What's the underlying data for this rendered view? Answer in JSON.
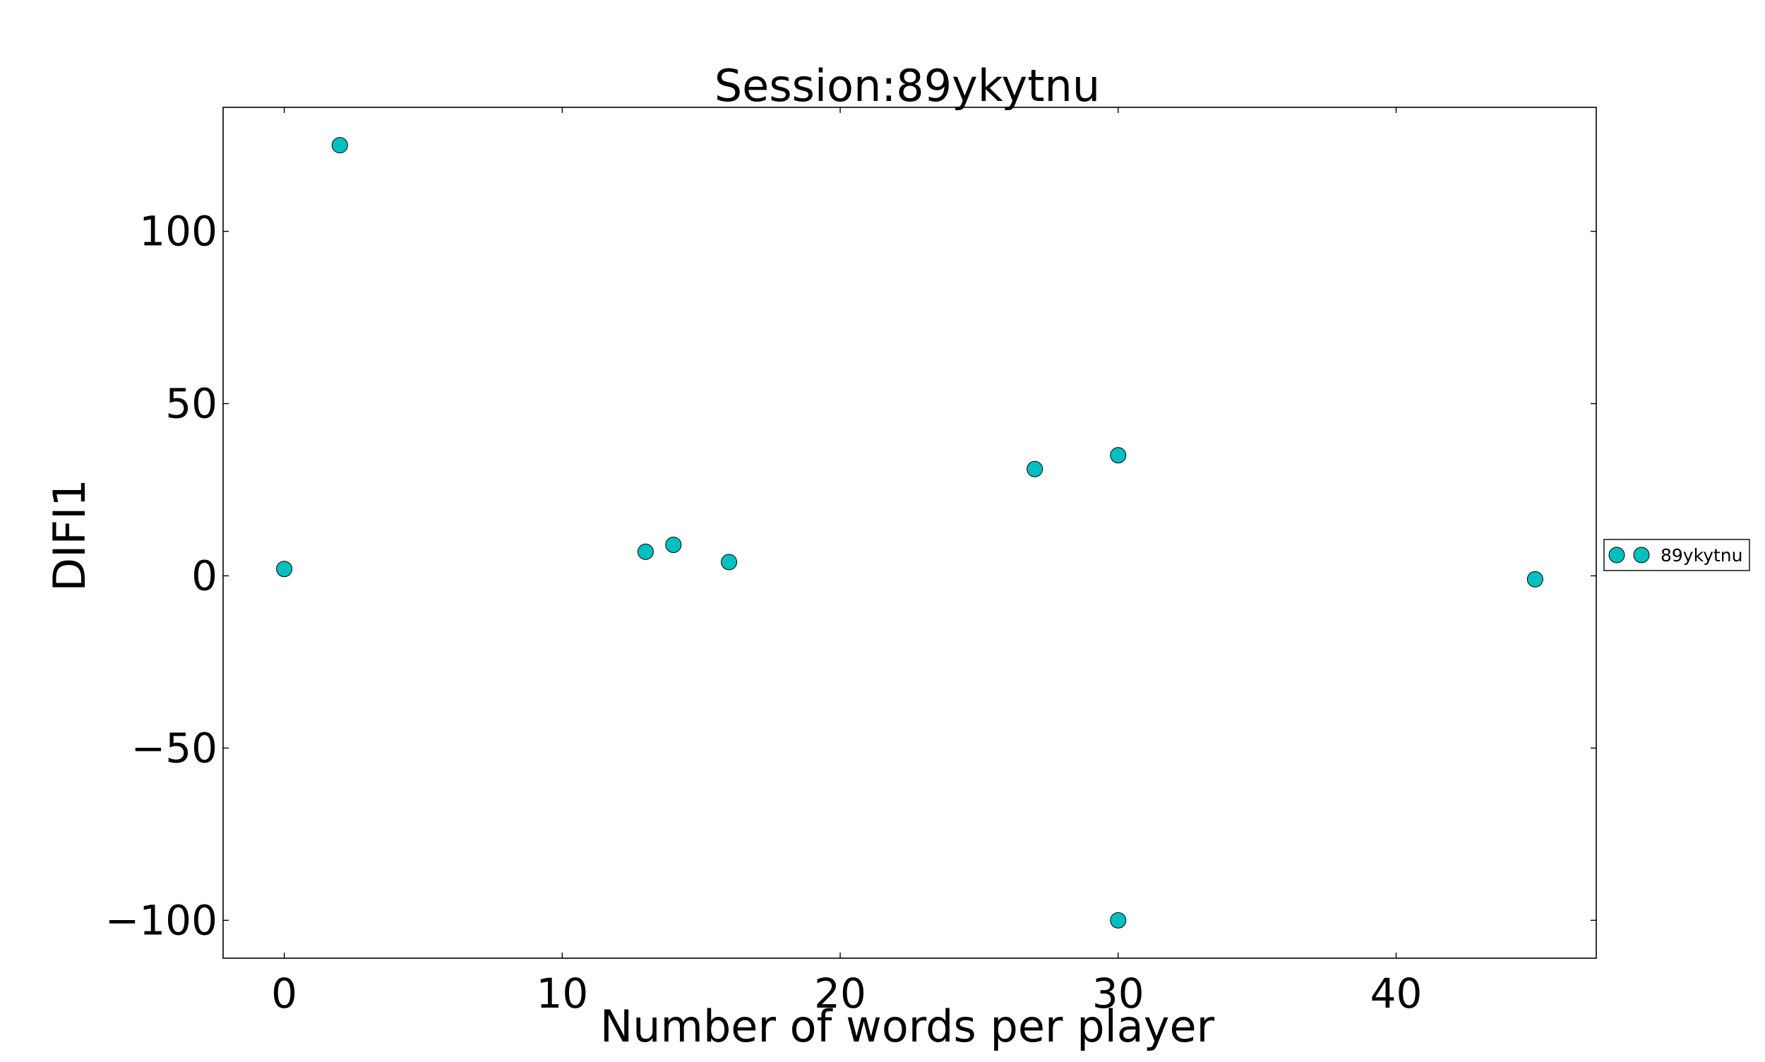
{
  "chart_data": {
    "type": "scatter",
    "title": "Session:89ykytnu",
    "xlabel": "Number of words per player",
    "ylabel": "DIFI1",
    "xlim": [
      -2.2,
      47.2
    ],
    "ylim": [
      -111,
      136
    ],
    "xticks": [
      0,
      10,
      20,
      30,
      40
    ],
    "yticks": [
      -100,
      -50,
      0,
      50,
      100
    ],
    "xtick_labels": [
      "0",
      "10",
      "20",
      "30",
      "40"
    ],
    "ytick_labels": [
      "−100",
      "−50",
      "0",
      "50",
      "100"
    ],
    "grid": false,
    "legend_position": "outside right",
    "marker_color": "#00BFBF",
    "series": [
      {
        "name": "89ykytnu",
        "points": [
          {
            "x": 0,
            "y": 2
          },
          {
            "x": 2,
            "y": 125
          },
          {
            "x": 13,
            "y": 7
          },
          {
            "x": 14,
            "y": 9
          },
          {
            "x": 16,
            "y": 4
          },
          {
            "x": 27,
            "y": 31
          },
          {
            "x": 30,
            "y": 35
          },
          {
            "x": 30,
            "y": -100
          },
          {
            "x": 45,
            "y": -1
          }
        ]
      }
    ]
  }
}
